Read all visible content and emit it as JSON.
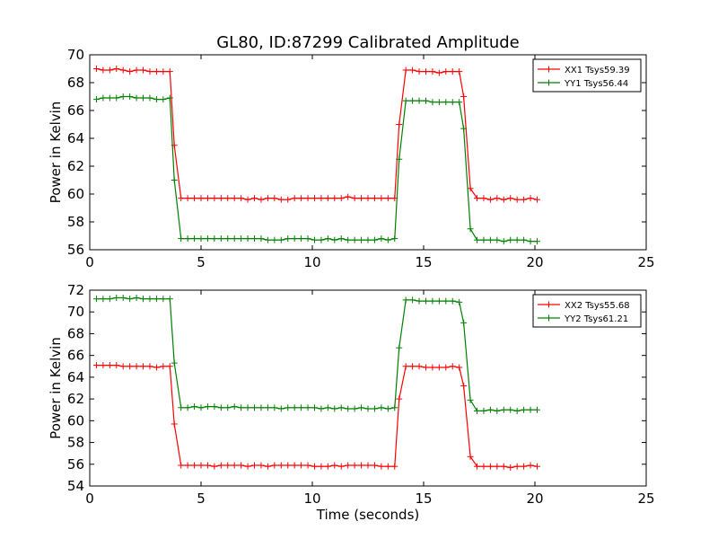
{
  "figure": {
    "title": "GL80, ID:87299 Calibrated Amplitude",
    "xlabel": "Time (seconds)"
  },
  "chart_data": [
    {
      "type": "line",
      "title": "GL80, ID:87299 Calibrated Amplitude",
      "xlabel": "",
      "ylabel": "Power in Kelvin",
      "xlim": [
        0,
        25
      ],
      "ylim": [
        56,
        70
      ],
      "xticks": [
        "0",
        "5",
        "10",
        "15",
        "20",
        "25"
      ],
      "yticks": [
        "56",
        "58",
        "60",
        "62",
        "64",
        "66",
        "68",
        "70"
      ],
      "grid": false,
      "legend": "top-right",
      "x": [
        0.3,
        0.6,
        0.9,
        1.2,
        1.5,
        1.8,
        2.1,
        2.4,
        2.7,
        3.0,
        3.3,
        3.6,
        3.8,
        4.1,
        4.4,
        4.7,
        5.0,
        5.3,
        5.6,
        5.9,
        6.2,
        6.5,
        6.8,
        7.1,
        7.4,
        7.7,
        8.0,
        8.3,
        8.6,
        8.9,
        9.2,
        9.5,
        9.8,
        10.1,
        10.4,
        10.7,
        11.0,
        11.3,
        11.6,
        11.9,
        12.2,
        12.5,
        12.8,
        13.1,
        13.4,
        13.7,
        13.9,
        14.2,
        14.5,
        14.8,
        15.1,
        15.4,
        15.7,
        16.0,
        16.3,
        16.6,
        16.8,
        17.1,
        17.4,
        17.7,
        18.0,
        18.3,
        18.6,
        18.9,
        19.2,
        19.5,
        19.8,
        20.1
      ],
      "series": [
        {
          "name": "XX1 Tsys59.39",
          "color": "#ff0000",
          "values": [
            69.0,
            68.9,
            68.9,
            69.0,
            68.9,
            68.8,
            68.9,
            68.9,
            68.8,
            68.8,
            68.8,
            68.8,
            63.5,
            59.7,
            59.7,
            59.7,
            59.7,
            59.7,
            59.7,
            59.7,
            59.7,
            59.7,
            59.7,
            59.6,
            59.7,
            59.6,
            59.7,
            59.7,
            59.6,
            59.6,
            59.7,
            59.7,
            59.7,
            59.7,
            59.7,
            59.7,
            59.7,
            59.7,
            59.8,
            59.7,
            59.7,
            59.7,
            59.7,
            59.7,
            59.7,
            59.7,
            65.0,
            68.9,
            68.9,
            68.8,
            68.8,
            68.8,
            68.7,
            68.8,
            68.8,
            68.8,
            67.0,
            60.4,
            59.7,
            59.7,
            59.6,
            59.7,
            59.6,
            59.7,
            59.6,
            59.6,
            59.7,
            59.6
          ]
        },
        {
          "name": "YY1 Tsys56.44",
          "color": "#008000",
          "values": [
            66.8,
            66.9,
            66.9,
            66.9,
            67.0,
            67.0,
            66.9,
            66.9,
            66.9,
            66.8,
            66.8,
            66.9,
            61.0,
            56.8,
            56.8,
            56.8,
            56.8,
            56.8,
            56.8,
            56.8,
            56.8,
            56.8,
            56.8,
            56.8,
            56.8,
            56.8,
            56.7,
            56.7,
            56.7,
            56.8,
            56.8,
            56.8,
            56.8,
            56.7,
            56.7,
            56.8,
            56.7,
            56.8,
            56.7,
            56.7,
            56.7,
            56.7,
            56.7,
            56.8,
            56.7,
            56.8,
            62.5,
            66.7,
            66.7,
            66.7,
            66.7,
            66.6,
            66.6,
            66.6,
            66.6,
            66.6,
            64.7,
            57.5,
            56.7,
            56.7,
            56.7,
            56.7,
            56.6,
            56.7,
            56.7,
            56.7,
            56.6,
            56.6
          ]
        }
      ]
    },
    {
      "type": "line",
      "title": "",
      "xlabel": "Time (seconds)",
      "ylabel": "Power in Kelvin",
      "xlim": [
        0,
        25
      ],
      "ylim": [
        54,
        72
      ],
      "xticks": [
        "0",
        "5",
        "10",
        "15",
        "20",
        "25"
      ],
      "yticks": [
        "54",
        "56",
        "58",
        "60",
        "62",
        "64",
        "66",
        "68",
        "70",
        "72"
      ],
      "grid": false,
      "legend": "top-right",
      "x": [
        0.3,
        0.6,
        0.9,
        1.2,
        1.5,
        1.8,
        2.1,
        2.4,
        2.7,
        3.0,
        3.3,
        3.6,
        3.8,
        4.1,
        4.4,
        4.7,
        5.0,
        5.3,
        5.6,
        5.9,
        6.2,
        6.5,
        6.8,
        7.1,
        7.4,
        7.7,
        8.0,
        8.3,
        8.6,
        8.9,
        9.2,
        9.5,
        9.8,
        10.1,
        10.4,
        10.7,
        11.0,
        11.3,
        11.6,
        11.9,
        12.2,
        12.5,
        12.8,
        13.1,
        13.4,
        13.7,
        13.9,
        14.2,
        14.5,
        14.8,
        15.1,
        15.4,
        15.7,
        16.0,
        16.3,
        16.6,
        16.8,
        17.1,
        17.4,
        17.7,
        18.0,
        18.3,
        18.6,
        18.9,
        19.2,
        19.5,
        19.8,
        20.1
      ],
      "series": [
        {
          "name": "XX2 Tsys55.68",
          "color": "#ff0000",
          "values": [
            65.1,
            65.1,
            65.1,
            65.1,
            65.0,
            65.0,
            65.0,
            65.0,
            65.0,
            64.9,
            65.0,
            65.0,
            59.7,
            55.9,
            55.9,
            55.9,
            55.9,
            55.9,
            55.8,
            55.9,
            55.9,
            55.9,
            55.9,
            55.8,
            55.9,
            55.9,
            55.8,
            55.9,
            55.9,
            55.9,
            55.9,
            55.9,
            55.9,
            55.8,
            55.8,
            55.8,
            55.9,
            55.8,
            55.9,
            55.9,
            55.9,
            55.9,
            55.9,
            55.8,
            55.8,
            55.8,
            62.0,
            65.0,
            65.0,
            65.0,
            64.9,
            64.9,
            64.9,
            64.9,
            65.0,
            64.9,
            63.2,
            56.7,
            55.8,
            55.8,
            55.8,
            55.8,
            55.8,
            55.7,
            55.8,
            55.8,
            55.9,
            55.8
          ]
        },
        {
          "name": "YY2 Tsys61.21",
          "color": "#008000",
          "values": [
            71.2,
            71.2,
            71.2,
            71.3,
            71.3,
            71.2,
            71.3,
            71.2,
            71.2,
            71.2,
            71.2,
            71.2,
            65.3,
            61.2,
            61.2,
            61.3,
            61.2,
            61.3,
            61.3,
            61.2,
            61.2,
            61.3,
            61.2,
            61.2,
            61.2,
            61.2,
            61.2,
            61.2,
            61.1,
            61.2,
            61.2,
            61.2,
            61.2,
            61.2,
            61.1,
            61.2,
            61.1,
            61.2,
            61.1,
            61.1,
            61.2,
            61.1,
            61.1,
            61.2,
            61.1,
            61.2,
            66.7,
            71.1,
            71.1,
            71.0,
            71.0,
            71.0,
            71.0,
            71.0,
            71.0,
            70.9,
            69.0,
            61.9,
            60.9,
            60.9,
            61.0,
            60.9,
            61.0,
            61.0,
            60.9,
            61.0,
            61.0,
            61.0
          ]
        }
      ]
    }
  ]
}
